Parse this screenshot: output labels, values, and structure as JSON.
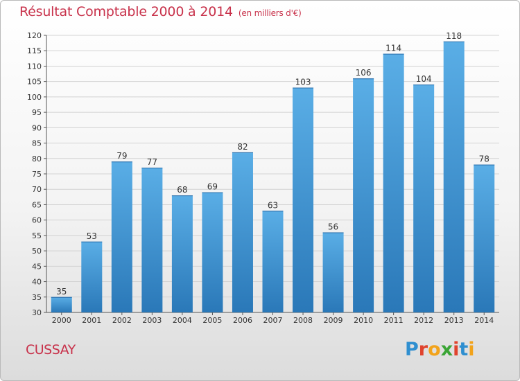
{
  "header": {
    "title": "Résultat Comptable 2000 à 2014",
    "subtitle": "(en milliers d'€)"
  },
  "footer": {
    "commune": "CUSSAY",
    "logo": [
      "P",
      "r",
      "o",
      "x",
      "i",
      "t",
      "i"
    ]
  },
  "colors": {
    "title": "#c8324b",
    "bar_top": "#5aaee6",
    "bar_bottom": "#2a78b8",
    "logo": [
      "#2f8fd0",
      "#e0432d",
      "#f2a31b",
      "#3aa535",
      "#e0432d",
      "#2f8fd0",
      "#f2a31b"
    ]
  },
  "chart_data": {
    "type": "bar",
    "title": "Résultat Comptable 2000 à 2014",
    "categories": [
      "2000",
      "2001",
      "2002",
      "2003",
      "2004",
      "2005",
      "2006",
      "2007",
      "2008",
      "2009",
      "2010",
      "2011",
      "2012",
      "2013",
      "2014"
    ],
    "values": [
      35,
      53,
      79,
      77,
      68,
      69,
      82,
      63,
      103,
      56,
      106,
      114,
      104,
      118,
      78
    ],
    "ylim": [
      30,
      120
    ],
    "yticks": [
      30,
      35,
      40,
      45,
      50,
      55,
      60,
      65,
      70,
      75,
      80,
      85,
      90,
      95,
      100,
      105,
      110,
      115,
      120
    ],
    "grid": true
  }
}
